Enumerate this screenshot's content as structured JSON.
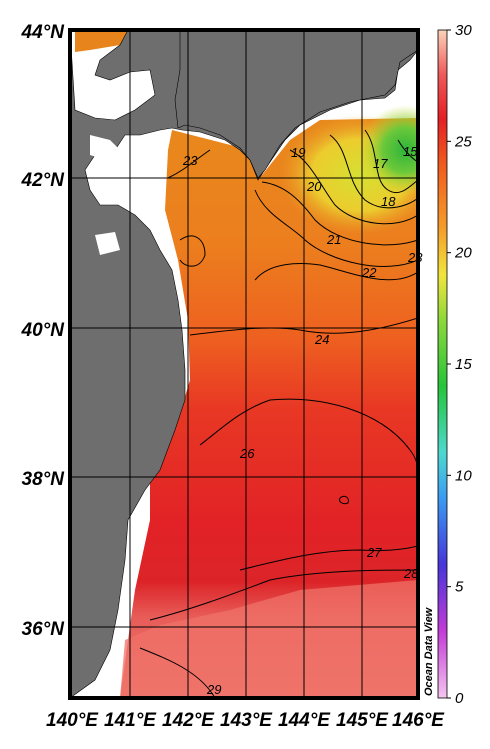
{
  "map": {
    "credit": "Ocean Data View",
    "lat_labels": [
      "44°N",
      "42°N",
      "40°N",
      "38°N",
      "36°N"
    ],
    "lon_labels": [
      "140°E",
      "141°E",
      "142°E",
      "143°E",
      "144°E",
      "145°E",
      "146°E"
    ],
    "contour_labels": [
      "15",
      "17",
      "18",
      "19",
      "20",
      "21",
      "22",
      "23",
      "23",
      "24",
      "26",
      "27",
      "28",
      "29"
    ],
    "colors": {
      "land": "#6e6e6e",
      "no_data": "#ffffff",
      "warm": "#e8282a",
      "hot": "#f07470",
      "orange": "#e8901c",
      "yellow": "#d8e030",
      "green": "#3cb83c"
    }
  },
  "colorbar": {
    "min": 0,
    "max": 30,
    "ticks": [
      "30",
      "25",
      "20",
      "15",
      "10",
      "5",
      "0"
    ],
    "stops": [
      {
        "v": 0,
        "c": "#f5c6ef"
      },
      {
        "v": 3,
        "c": "#c23bd6"
      },
      {
        "v": 6,
        "c": "#4636d8"
      },
      {
        "v": 9,
        "c": "#3a9cf2"
      },
      {
        "v": 11,
        "c": "#4ed8d0"
      },
      {
        "v": 14,
        "c": "#26c43a"
      },
      {
        "v": 17,
        "c": "#8fd83a"
      },
      {
        "v": 19,
        "c": "#f1e53c"
      },
      {
        "v": 21,
        "c": "#f4a02a"
      },
      {
        "v": 24,
        "c": "#f05a1e"
      },
      {
        "v": 26,
        "c": "#e41f24"
      },
      {
        "v": 28,
        "c": "#ee5a5a"
      },
      {
        "v": 30,
        "c": "#fbd3b8"
      }
    ]
  }
}
